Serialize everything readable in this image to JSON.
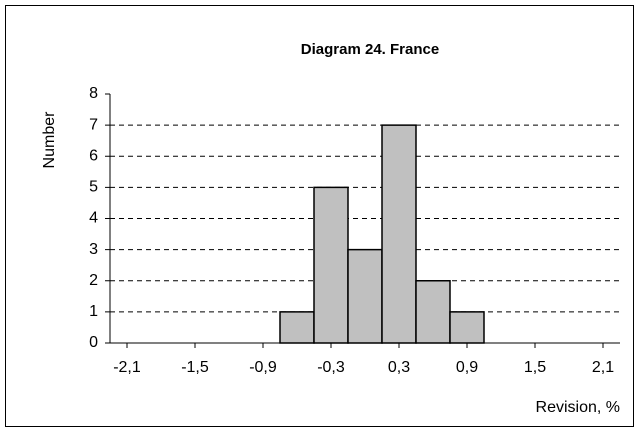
{
  "chart_data": {
    "type": "histogram",
    "title": "Diagram 24.  France",
    "x_label": "Revision, %",
    "y_label": "Number",
    "bins": [
      -0.75,
      -0.45,
      -0.15,
      0.15,
      0.45,
      0.75,
      1.05
    ],
    "values": [
      1,
      5,
      3,
      7,
      2,
      1
    ],
    "color": "#c0c0c0",
    "xlim": [
      -2.25,
      2.25
    ],
    "xticks": [
      {
        "value": -2.1,
        "label": "-2,1"
      },
      {
        "value": -1.5,
        "label": "-1,5"
      },
      {
        "value": -0.9,
        "label": "-0,9"
      },
      {
        "value": -0.3,
        "label": "-0,3"
      },
      {
        "value": 0.3,
        "label": "0,3"
      },
      {
        "value": 0.9,
        "label": "0,9"
      },
      {
        "value": 1.5,
        "label": "1,5"
      },
      {
        "value": 2.1,
        "label": "2,1"
      }
    ],
    "ylim": [
      0,
      8
    ],
    "yticks": [
      0,
      1,
      2,
      3,
      4,
      5,
      6,
      7,
      8
    ],
    "grid": true
  }
}
